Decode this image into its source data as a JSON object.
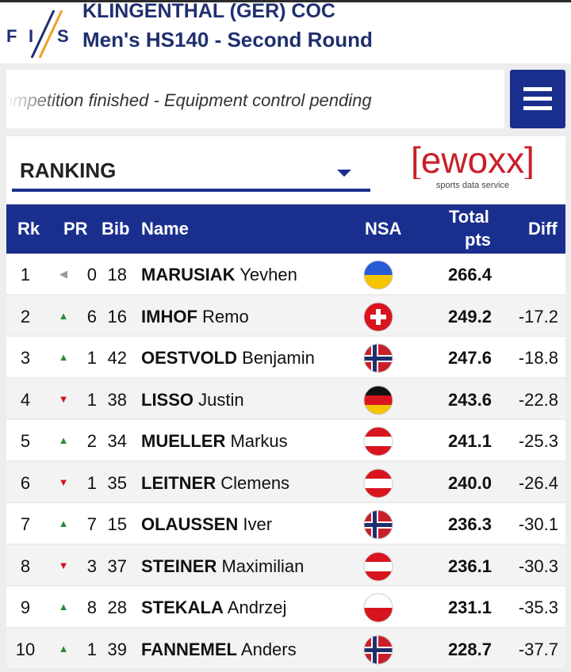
{
  "event": {
    "org_logo": "FIS",
    "title": "KLINGENTHAL (GER) COC",
    "subtitle": "Men's HS140 - Second Round"
  },
  "status": {
    "text": "Competition finished - Equipment control pending"
  },
  "menu": {
    "icon": "hamburger-menu-icon"
  },
  "view_select": {
    "value": "RANKING"
  },
  "sponsor": {
    "name": "[ewoxx]",
    "tagline": "sports data service"
  },
  "table": {
    "headers": {
      "rk": "Rk",
      "pr": "PR",
      "bib": "Bib",
      "name": "Name",
      "nsa": "NSA",
      "total_1": "Total",
      "total_2": "pts",
      "diff": "Diff"
    },
    "rows": [
      {
        "rk": "1",
        "pr_dir": "same",
        "pr": "0",
        "bib": "18",
        "last": "MARUSIAK",
        "first": "Yevhen",
        "nsa": "UKR",
        "total": "266.4",
        "diff": ""
      },
      {
        "rk": "2",
        "pr_dir": "up",
        "pr": "6",
        "bib": "16",
        "last": "IMHOF",
        "first": "Remo",
        "nsa": "SUI",
        "total": "249.2",
        "diff": "-17.2"
      },
      {
        "rk": "3",
        "pr_dir": "up",
        "pr": "1",
        "bib": "42",
        "last": "OESTVOLD",
        "first": "Benjamin",
        "nsa": "NOR",
        "total": "247.6",
        "diff": "-18.8"
      },
      {
        "rk": "4",
        "pr_dir": "down",
        "pr": "1",
        "bib": "38",
        "last": "LISSO",
        "first": "Justin",
        "nsa": "GER",
        "total": "243.6",
        "diff": "-22.8"
      },
      {
        "rk": "5",
        "pr_dir": "up",
        "pr": "2",
        "bib": "34",
        "last": "MUELLER",
        "first": "Markus",
        "nsa": "AUT",
        "total": "241.1",
        "diff": "-25.3"
      },
      {
        "rk": "6",
        "pr_dir": "down",
        "pr": "1",
        "bib": "35",
        "last": "LEITNER",
        "first": "Clemens",
        "nsa": "AUT",
        "total": "240.0",
        "diff": "-26.4"
      },
      {
        "rk": "7",
        "pr_dir": "up",
        "pr": "7",
        "bib": "15",
        "last": "OLAUSSEN",
        "first": "Iver",
        "nsa": "NOR",
        "total": "236.3",
        "diff": "-30.1"
      },
      {
        "rk": "8",
        "pr_dir": "down",
        "pr": "3",
        "bib": "37",
        "last": "STEINER",
        "first": "Maximilian",
        "nsa": "AUT",
        "total": "236.1",
        "diff": "-30.3"
      },
      {
        "rk": "9",
        "pr_dir": "up",
        "pr": "8",
        "bib": "28",
        "last": "STEKALA",
        "first": "Andrzej",
        "nsa": "POL",
        "total": "231.1",
        "diff": "-35.3"
      },
      {
        "rk": "10",
        "pr_dir": "up",
        "pr": "1",
        "bib": "39",
        "last": "FANNEMEL",
        "first": "Anders",
        "nsa": "NOR",
        "total": "228.7",
        "diff": "-37.7"
      }
    ]
  },
  "colors": {
    "brand_blue": "#1a2f8d",
    "up": "#2e8b3a",
    "down": "#d0111b",
    "ewoxx_red": "#c8202a"
  }
}
